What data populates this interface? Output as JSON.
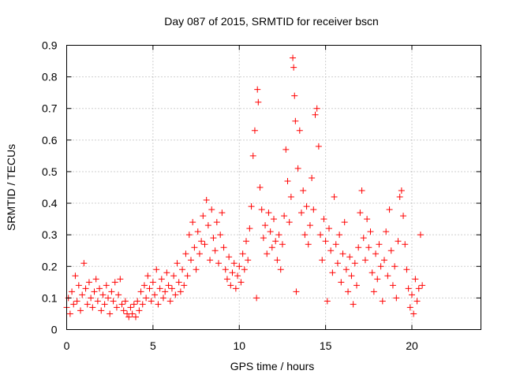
{
  "chart_data": {
    "type": "scatter",
    "title": "Day 087 of 2015, SRMTID for receiver bscn",
    "xlabel": "GPS time / hours",
    "ylabel": "SRMTID / TECUs",
    "xlim": [
      0,
      24
    ],
    "ylim": [
      0,
      0.9
    ],
    "xticks": [
      0,
      5,
      10,
      15,
      20
    ],
    "xtick_labels": [
      "0",
      "5",
      "10",
      "15",
      "20"
    ],
    "yticks": [
      0,
      0.1,
      0.2,
      0.3,
      0.4,
      0.5,
      0.6,
      0.7,
      0.8,
      0.9
    ],
    "ytick_labels": [
      "0",
      "0.1",
      "0.2",
      "0.3",
      "0.4",
      "0.5",
      "0.6",
      "0.7",
      "0.8",
      "0.9"
    ],
    "grid": true,
    "marker": "+",
    "color": "#ff0000",
    "series": [
      {
        "name": "SRMTID",
        "points": [
          [
            0.0,
            0.07
          ],
          [
            0.1,
            0.1
          ],
          [
            0.2,
            0.05
          ],
          [
            0.3,
            0.12
          ],
          [
            0.4,
            0.08
          ],
          [
            0.5,
            0.17
          ],
          [
            0.6,
            0.09
          ],
          [
            0.7,
            0.14
          ],
          [
            0.8,
            0.06
          ],
          [
            0.9,
            0.11
          ],
          [
            1.0,
            0.21
          ],
          [
            1.1,
            0.13
          ],
          [
            1.2,
            0.08
          ],
          [
            1.3,
            0.15
          ],
          [
            1.4,
            0.1
          ],
          [
            1.5,
            0.07
          ],
          [
            1.6,
            0.12
          ],
          [
            1.7,
            0.16
          ],
          [
            1.8,
            0.09
          ],
          [
            1.9,
            0.13
          ],
          [
            2.0,
            0.06
          ],
          [
            2.1,
            0.11
          ],
          [
            2.2,
            0.08
          ],
          [
            2.3,
            0.14
          ],
          [
            2.4,
            0.1
          ],
          [
            2.5,
            0.05
          ],
          [
            2.6,
            0.12
          ],
          [
            2.7,
            0.09
          ],
          [
            2.8,
            0.15
          ],
          [
            2.9,
            0.07
          ],
          [
            3.0,
            0.11
          ],
          [
            3.1,
            0.16
          ],
          [
            3.2,
            0.08
          ],
          [
            3.3,
            0.06
          ],
          [
            3.4,
            0.09
          ],
          [
            3.5,
            0.05
          ],
          [
            3.6,
            0.04
          ],
          [
            3.7,
            0.07
          ],
          [
            3.8,
            0.05
          ],
          [
            3.9,
            0.08
          ],
          [
            4.0,
            0.04
          ],
          [
            4.1,
            0.09
          ],
          [
            4.2,
            0.06
          ],
          [
            4.3,
            0.12
          ],
          [
            4.4,
            0.08
          ],
          [
            4.5,
            0.14
          ],
          [
            4.6,
            0.1
          ],
          [
            4.7,
            0.17
          ],
          [
            4.8,
            0.13
          ],
          [
            4.9,
            0.09
          ],
          [
            5.0,
            0.15
          ],
          [
            5.1,
            0.11
          ],
          [
            5.2,
            0.19
          ],
          [
            5.3,
            0.08
          ],
          [
            5.4,
            0.13
          ],
          [
            5.5,
            0.16
          ],
          [
            5.6,
            0.1
          ],
          [
            5.7,
            0.12
          ],
          [
            5.8,
            0.18
          ],
          [
            5.9,
            0.14
          ],
          [
            6.0,
            0.09
          ],
          [
            6.1,
            0.13
          ],
          [
            6.2,
            0.17
          ],
          [
            6.3,
            0.11
          ],
          [
            6.4,
            0.21
          ],
          [
            6.5,
            0.15
          ],
          [
            6.6,
            0.12
          ],
          [
            6.7,
            0.19
          ],
          [
            6.8,
            0.14
          ],
          [
            6.9,
            0.24
          ],
          [
            7.0,
            0.17
          ],
          [
            7.1,
            0.3
          ],
          [
            7.2,
            0.22
          ],
          [
            7.3,
            0.34
          ],
          [
            7.4,
            0.26
          ],
          [
            7.5,
            0.19
          ],
          [
            7.6,
            0.31
          ],
          [
            7.7,
            0.24
          ],
          [
            7.8,
            0.28
          ],
          [
            7.9,
            0.36
          ],
          [
            8.0,
            0.27
          ],
          [
            8.1,
            0.41
          ],
          [
            8.2,
            0.33
          ],
          [
            8.3,
            0.22
          ],
          [
            8.4,
            0.38
          ],
          [
            8.5,
            0.29
          ],
          [
            8.6,
            0.25
          ],
          [
            8.7,
            0.34
          ],
          [
            8.8,
            0.21
          ],
          [
            8.9,
            0.3
          ],
          [
            9.0,
            0.37
          ],
          [
            9.1,
            0.26
          ],
          [
            9.2,
            0.19
          ],
          [
            9.3,
            0.16
          ],
          [
            9.4,
            0.23
          ],
          [
            9.5,
            0.14
          ],
          [
            9.6,
            0.18
          ],
          [
            9.7,
            0.21
          ],
          [
            9.8,
            0.13
          ],
          [
            9.9,
            0.17
          ],
          [
            10.0,
            0.2
          ],
          [
            10.1,
            0.15
          ],
          [
            10.2,
            0.24
          ],
          [
            10.3,
            0.19
          ],
          [
            10.4,
            0.28
          ],
          [
            10.5,
            0.22
          ],
          [
            10.6,
            0.32
          ],
          [
            10.7,
            0.39
          ],
          [
            10.8,
            0.55
          ],
          [
            10.9,
            0.63
          ],
          [
            11.0,
            0.1
          ],
          [
            11.05,
            0.76
          ],
          [
            11.1,
            0.72
          ],
          [
            11.2,
            0.45
          ],
          [
            11.3,
            0.38
          ],
          [
            11.4,
            0.29
          ],
          [
            11.5,
            0.33
          ],
          [
            11.6,
            0.24
          ],
          [
            11.7,
            0.37
          ],
          [
            11.8,
            0.31
          ],
          [
            11.9,
            0.26
          ],
          [
            12.0,
            0.35
          ],
          [
            12.1,
            0.28
          ],
          [
            12.2,
            0.22
          ],
          [
            12.3,
            0.3
          ],
          [
            12.4,
            0.19
          ],
          [
            12.5,
            0.27
          ],
          [
            12.6,
            0.36
          ],
          [
            12.7,
            0.57
          ],
          [
            12.8,
            0.47
          ],
          [
            12.9,
            0.34
          ],
          [
            13.0,
            0.42
          ],
          [
            13.1,
            0.86
          ],
          [
            13.15,
            0.83
          ],
          [
            13.2,
            0.74
          ],
          [
            13.25,
            0.66
          ],
          [
            13.3,
            0.12
          ],
          [
            13.4,
            0.51
          ],
          [
            13.5,
            0.63
          ],
          [
            13.6,
            0.37
          ],
          [
            13.7,
            0.44
          ],
          [
            13.8,
            0.3
          ],
          [
            13.9,
            0.39
          ],
          [
            14.0,
            0.27
          ],
          [
            14.1,
            0.33
          ],
          [
            14.2,
            0.48
          ],
          [
            14.3,
            0.38
          ],
          [
            14.4,
            0.68
          ],
          [
            14.5,
            0.7
          ],
          [
            14.6,
            0.58
          ],
          [
            14.7,
            0.3
          ],
          [
            14.8,
            0.22
          ],
          [
            14.9,
            0.35
          ],
          [
            15.0,
            0.28
          ],
          [
            15.1,
            0.09
          ],
          [
            15.2,
            0.32
          ],
          [
            15.3,
            0.25
          ],
          [
            15.4,
            0.18
          ],
          [
            15.5,
            0.42
          ],
          [
            15.6,
            0.27
          ],
          [
            15.7,
            0.21
          ],
          [
            15.8,
            0.3
          ],
          [
            15.9,
            0.15
          ],
          [
            16.0,
            0.24
          ],
          [
            16.1,
            0.34
          ],
          [
            16.2,
            0.19
          ],
          [
            16.3,
            0.12
          ],
          [
            16.4,
            0.23
          ],
          [
            16.5,
            0.17
          ],
          [
            16.6,
            0.08
          ],
          [
            16.7,
            0.21
          ],
          [
            16.8,
            0.14
          ],
          [
            16.9,
            0.26
          ],
          [
            17.0,
            0.37
          ],
          [
            17.1,
            0.44
          ],
          [
            17.2,
            0.29
          ],
          [
            17.3,
            0.22
          ],
          [
            17.4,
            0.35
          ],
          [
            17.5,
            0.26
          ],
          [
            17.6,
            0.31
          ],
          [
            17.7,
            0.18
          ],
          [
            17.8,
            0.12
          ],
          [
            17.9,
            0.24
          ],
          [
            18.0,
            0.16
          ],
          [
            18.1,
            0.27
          ],
          [
            18.2,
            0.2
          ],
          [
            18.3,
            0.09
          ],
          [
            18.4,
            0.22
          ],
          [
            18.5,
            0.31
          ],
          [
            18.6,
            0.17
          ],
          [
            18.7,
            0.38
          ],
          [
            18.8,
            0.25
          ],
          [
            18.9,
            0.14
          ],
          [
            19.0,
            0.2
          ],
          [
            19.1,
            0.1
          ],
          [
            19.2,
            0.28
          ],
          [
            19.3,
            0.42
          ],
          [
            19.4,
            0.44
          ],
          [
            19.5,
            0.36
          ],
          [
            19.6,
            0.27
          ],
          [
            19.7,
            0.19
          ],
          [
            19.8,
            0.13
          ],
          [
            19.9,
            0.07
          ],
          [
            20.0,
            0.11
          ],
          [
            20.1,
            0.05
          ],
          [
            20.2,
            0.16
          ],
          [
            20.3,
            0.09
          ],
          [
            20.4,
            0.13
          ],
          [
            20.5,
            0.3
          ],
          [
            20.6,
            0.14
          ]
        ]
      }
    ]
  }
}
